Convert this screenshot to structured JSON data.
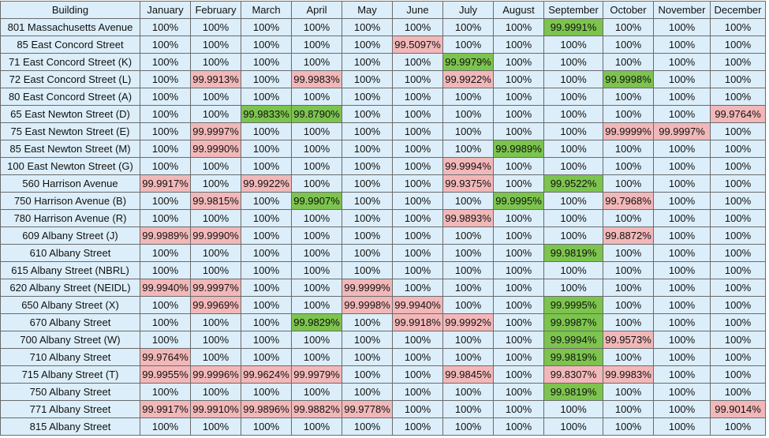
{
  "columns": [
    "Building",
    "January",
    "February",
    "March",
    "April",
    "May",
    "June",
    "July",
    "August",
    "September",
    "October",
    "November",
    "December"
  ],
  "rows": [
    {
      "building": "801 Massachusetts Avenue",
      "values": [
        "100%",
        "100%",
        "100%",
        "100%",
        "100%",
        "100%",
        "100%",
        "100%",
        "99.9991%",
        "100%",
        "100%",
        "100%"
      ],
      "status": [
        "",
        "",
        "",
        "",
        "",
        "",
        "",
        "",
        "g",
        "",
        "",
        ""
      ]
    },
    {
      "building": "85 East Concord Street",
      "values": [
        "100%",
        "100%",
        "100%",
        "100%",
        "100%",
        "99.5097%",
        "100%",
        "100%",
        "100%",
        "100%",
        "100%",
        "100%"
      ],
      "status": [
        "",
        "",
        "",
        "",
        "",
        "r",
        "",
        "",
        "",
        "",
        "",
        ""
      ]
    },
    {
      "building": "71 East Concord Street (K)",
      "values": [
        "100%",
        "100%",
        "100%",
        "100%",
        "100%",
        "100%",
        "99.9979%",
        "100%",
        "100%",
        "100%",
        "100%",
        "100%"
      ],
      "status": [
        "",
        "",
        "",
        "",
        "",
        "",
        "g",
        "",
        "",
        "",
        "",
        ""
      ]
    },
    {
      "building": "72 East Concord Street (L)",
      "values": [
        "100%",
        "99.9913%",
        "100%",
        "99.9983%",
        "100%",
        "100%",
        "99.9922%",
        "100%",
        "100%",
        "99.9998%",
        "100%",
        "100%"
      ],
      "status": [
        "",
        "r",
        "",
        "r",
        "",
        "",
        "r",
        "",
        "",
        "g",
        "",
        ""
      ]
    },
    {
      "building": "80 East Concord Street (A)",
      "values": [
        "100%",
        "100%",
        "100%",
        "100%",
        "100%",
        "100%",
        "100%",
        "100%",
        "100%",
        "100%",
        "100%",
        "100%"
      ],
      "status": [
        "",
        "",
        "",
        "",
        "",
        "",
        "",
        "",
        "",
        "",
        "",
        ""
      ]
    },
    {
      "building": "65 East Newton Street (D)",
      "values": [
        "100%",
        "100%",
        "99.9833%",
        "99.8790%",
        "100%",
        "100%",
        "100%",
        "100%",
        "100%",
        "100%",
        "100%",
        "99.9764%"
      ],
      "status": [
        "",
        "",
        "g",
        "g",
        "",
        "",
        "",
        "",
        "",
        "",
        "",
        "r"
      ]
    },
    {
      "building": "75 East Newton Street (E)",
      "values": [
        "100%",
        "99.9997%",
        "100%",
        "100%",
        "100%",
        "100%",
        "100%",
        "100%",
        "100%",
        "99.9999%",
        "99.9997%",
        "100%"
      ],
      "status": [
        "",
        "r",
        "",
        "",
        "",
        "",
        "",
        "",
        "",
        "r",
        "r",
        ""
      ]
    },
    {
      "building": "85 East Newton Street (M)",
      "values": [
        "100%",
        "99.9990%",
        "100%",
        "100%",
        "100%",
        "100%",
        "100%",
        "99.9989%",
        "100%",
        "100%",
        "100%",
        "100%"
      ],
      "status": [
        "",
        "r",
        "",
        "",
        "",
        "",
        "",
        "g",
        "",
        "",
        "",
        ""
      ]
    },
    {
      "building": "100 East Newton Street (G)",
      "values": [
        "100%",
        "100%",
        "100%",
        "100%",
        "100%",
        "100%",
        "99.9994%",
        "100%",
        "100%",
        "100%",
        "100%",
        "100%"
      ],
      "status": [
        "",
        "",
        "",
        "",
        "",
        "",
        "r",
        "",
        "",
        "",
        "",
        ""
      ]
    },
    {
      "building": "560 Harrison Avenue",
      "values": [
        "99.9917%",
        "100%",
        "99.9922%",
        "100%",
        "100%",
        "100%",
        "99.9375%",
        "100%",
        "99.9522%",
        "100%",
        "100%",
        "100%"
      ],
      "status": [
        "r",
        "",
        "r",
        "",
        "",
        "",
        "r",
        "",
        "g",
        "",
        "",
        ""
      ]
    },
    {
      "building": "750 Harrison Avenue (B)",
      "values": [
        "100%",
        "99.9815%",
        "100%",
        "99.9907%",
        "100%",
        "100%",
        "100%",
        "99.9995%",
        "100%",
        "99.7968%",
        "100%",
        "100%"
      ],
      "status": [
        "",
        "r",
        "",
        "g",
        "",
        "",
        "",
        "g",
        "",
        "r",
        "",
        ""
      ]
    },
    {
      "building": "780 Harrison Avenue (R)",
      "values": [
        "100%",
        "100%",
        "100%",
        "100%",
        "100%",
        "100%",
        "99.9893%",
        "100%",
        "100%",
        "100%",
        "100%",
        "100%"
      ],
      "status": [
        "",
        "",
        "",
        "",
        "",
        "",
        "r",
        "",
        "",
        "",
        "",
        ""
      ]
    },
    {
      "building": "609 Albany Street (J)",
      "values": [
        "99.9989%",
        "99.9990%",
        "100%",
        "100%",
        "100%",
        "100%",
        "100%",
        "100%",
        "100%",
        "99.8872%",
        "100%",
        "100%"
      ],
      "status": [
        "r",
        "r",
        "",
        "",
        "",
        "",
        "",
        "",
        "",
        "r",
        "",
        ""
      ]
    },
    {
      "building": "610 Albany Street",
      "values": [
        "100%",
        "100%",
        "100%",
        "100%",
        "100%",
        "100%",
        "100%",
        "100%",
        "99.9819%",
        "100%",
        "100%",
        "100%"
      ],
      "status": [
        "",
        "",
        "",
        "",
        "",
        "",
        "",
        "",
        "g",
        "",
        "",
        ""
      ]
    },
    {
      "building": "615 Albany Street (NBRL)",
      "values": [
        "100%",
        "100%",
        "100%",
        "100%",
        "100%",
        "100%",
        "100%",
        "100%",
        "100%",
        "100%",
        "100%",
        "100%"
      ],
      "status": [
        "",
        "",
        "",
        "",
        "",
        "",
        "",
        "",
        "",
        "",
        "",
        ""
      ]
    },
    {
      "building": "620 Albany Street (NEIDL)",
      "values": [
        "99.9940%",
        "99.9997%",
        "100%",
        "100%",
        "99.9999%",
        "100%",
        "100%",
        "100%",
        "100%",
        "100%",
        "100%",
        "100%"
      ],
      "status": [
        "r",
        "r",
        "",
        "",
        "r",
        "",
        "",
        "",
        "",
        "",
        "",
        ""
      ]
    },
    {
      "building": "650 Albany Street (X)",
      "values": [
        "100%",
        "99.9969%",
        "100%",
        "100%",
        "99.9998%",
        "99.9940%",
        "100%",
        "100%",
        "99.9995%",
        "100%",
        "100%",
        "100%"
      ],
      "status": [
        "",
        "r",
        "",
        "",
        "r",
        "r",
        "",
        "",
        "g",
        "",
        "",
        ""
      ]
    },
    {
      "building": "670 Albany Street",
      "values": [
        "100%",
        "100%",
        "100%",
        "99.9829%",
        "100%",
        "99.9918%",
        "99.9992%",
        "100%",
        "99.9987%",
        "100%",
        "100%",
        "100%"
      ],
      "status": [
        "",
        "",
        "",
        "g",
        "",
        "r",
        "r",
        "",
        "g",
        "",
        "",
        ""
      ]
    },
    {
      "building": "700 Albany Street (W)",
      "values": [
        "100%",
        "100%",
        "100%",
        "100%",
        "100%",
        "100%",
        "100%",
        "100%",
        "99.9994%",
        "99.9573%",
        "100%",
        "100%"
      ],
      "status": [
        "",
        "",
        "",
        "",
        "",
        "",
        "",
        "",
        "g",
        "r",
        "",
        ""
      ]
    },
    {
      "building": "710 Albany Street",
      "values": [
        "99.9764%",
        "100%",
        "100%",
        "100%",
        "100%",
        "100%",
        "100%",
        "100%",
        "99.9819%",
        "100%",
        "100%",
        "100%"
      ],
      "status": [
        "r",
        "",
        "",
        "",
        "",
        "",
        "",
        "",
        "g",
        "",
        "",
        ""
      ]
    },
    {
      "building": "715 Albany Street (T)",
      "values": [
        "99.9955%",
        "99.9996%",
        "99.9624%",
        "99.9979%",
        "100%",
        "100%",
        "99.9845%",
        "100%",
        "99.8307%",
        "99.9983%",
        "100%",
        "100%"
      ],
      "status": [
        "r",
        "r",
        "r",
        "r",
        "",
        "",
        "r",
        "",
        "r",
        "r",
        "",
        ""
      ]
    },
    {
      "building": "750 Albany Street",
      "values": [
        "100%",
        "100%",
        "100%",
        "100%",
        "100%",
        "100%",
        "100%",
        "100%",
        "99.9819%",
        "100%",
        "100%",
        "100%"
      ],
      "status": [
        "",
        "",
        "",
        "",
        "",
        "",
        "",
        "",
        "g",
        "",
        "",
        ""
      ]
    },
    {
      "building": "771 Albany Street",
      "values": [
        "99.9917%",
        "99.9910%",
        "99.9896%",
        "99.9882%",
        "99.9778%",
        "100%",
        "100%",
        "100%",
        "100%",
        "100%",
        "100%",
        "99.9014%"
      ],
      "status": [
        "r",
        "r",
        "r",
        "r",
        "r",
        "",
        "",
        "",
        "",
        "",
        "",
        "r"
      ]
    },
    {
      "building": "815 Albany Street",
      "values": [
        "100%",
        "100%",
        "100%",
        "100%",
        "100%",
        "100%",
        "100%",
        "100%",
        "100%",
        "100%",
        "100%",
        "100%"
      ],
      "status": [
        "",
        "",
        "",
        "",
        "",
        "",
        "",
        "",
        "",
        "",
        "",
        ""
      ]
    }
  ],
  "colors": {
    "normal": "#dceef9",
    "below_target": "#f2b8b9",
    "highlight": "#7cc44e",
    "grid": "#6b6b6b"
  }
}
